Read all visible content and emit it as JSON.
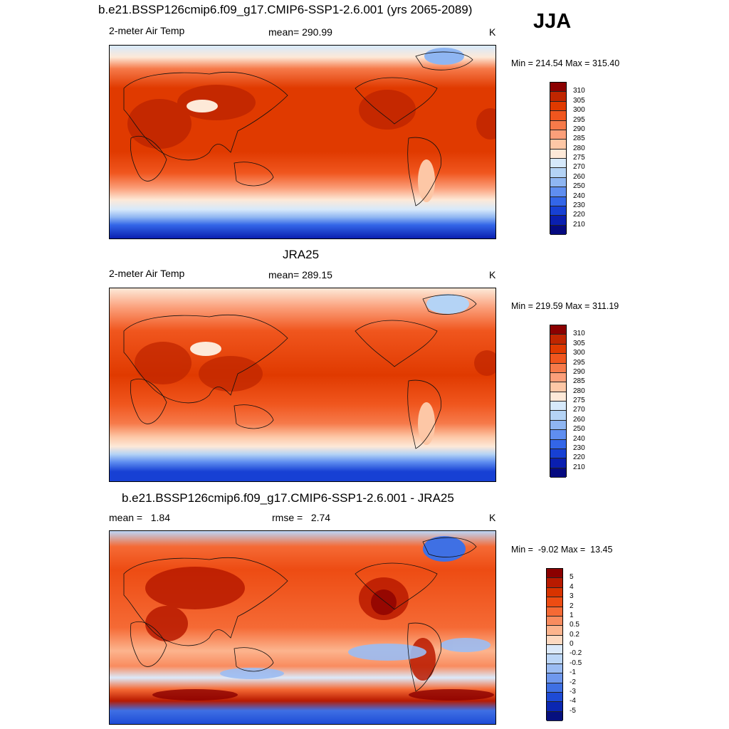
{
  "season": "JJA",
  "panels": [
    {
      "title": "b.e21.BSSP126cmip6.f09_g17.CMIP6-SSP1-2.6.001 (yrs 2065-2089)",
      "left_label": "2-meter Air Temp",
      "center_label": "mean= 290.99",
      "units": "K",
      "minmax": "Min = 214.54 Max = 315.40"
    },
    {
      "title": "JRA25",
      "left_label": "2-meter Air Temp",
      "center_label": "mean= 289.15",
      "units": "K",
      "minmax": "Min = 219.59 Max = 311.19"
    },
    {
      "title": "b.e21.BSSP126cmip6.f09_g17.CMIP6-SSP1-2.6.001 - JRA25",
      "left_label": "mean =   1.84",
      "center_label": "rmse =   2.74",
      "units": "K",
      "minmax": "Min =  -9.02 Max =  13.45"
    }
  ],
  "colorbars": {
    "temperature": {
      "labels": [
        "310",
        "305",
        "300",
        "295",
        "290",
        "285",
        "280",
        "275",
        "270",
        "260",
        "250",
        "240",
        "230",
        "220",
        "210"
      ],
      "colors": [
        "#8b0000",
        "#c02600",
        "#e03a00",
        "#f0561e",
        "#f67a4a",
        "#fb9f7a",
        "#fdc7a6",
        "#fde9d8",
        "#d6e9fb",
        "#b4d3f5",
        "#8fb6f2",
        "#5f8ef0",
        "#3366e8",
        "#1740d4",
        "#0a1fb0",
        "#050a80"
      ]
    },
    "difference": {
      "labels": [
        "5",
        "4",
        "3",
        "2",
        "1",
        "0.5",
        "0.2",
        "0",
        "-0.2",
        "-0.5",
        "-1",
        "-2",
        "-3",
        "-4",
        "-5"
      ],
      "colors": [
        "#8b0000",
        "#b81a00",
        "#d83300",
        "#ed4c13",
        "#f56a35",
        "#f98c5f",
        "#fcb48e",
        "#fdd9c1",
        "#dbe9fa",
        "#bcd6f7",
        "#9bbcf3",
        "#6f98ee",
        "#3f70e4",
        "#1e4bd6",
        "#0b27b2",
        "#06107f"
      ]
    }
  }
}
